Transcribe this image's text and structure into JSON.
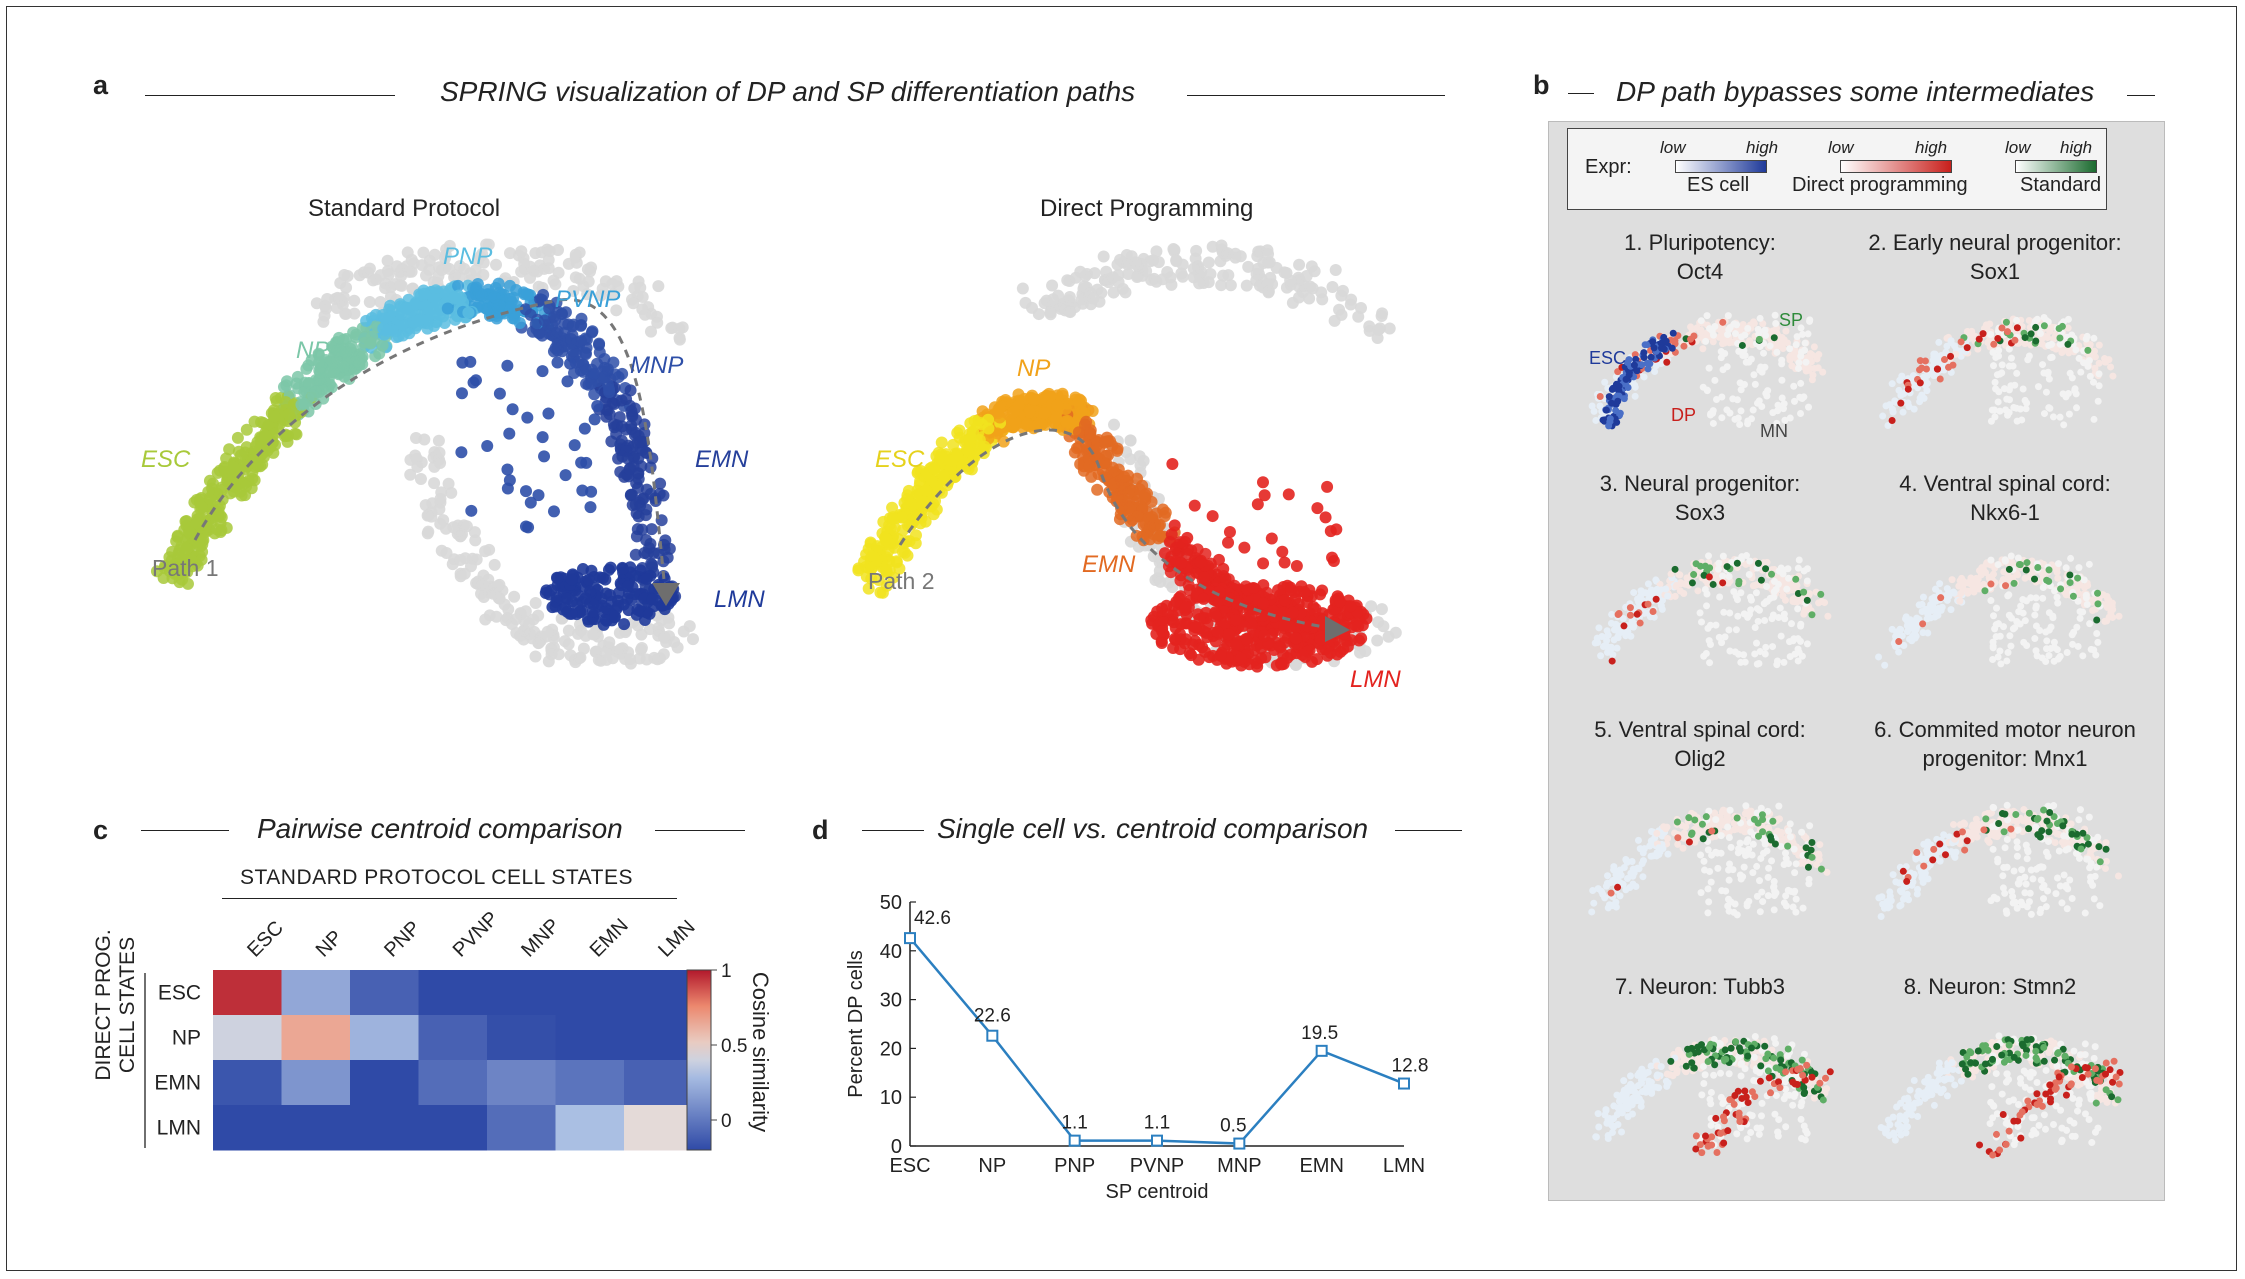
{
  "panel_a": {
    "letter": "a",
    "title": "SPRING visualization of DP and SP differentiation paths",
    "left": {
      "subtitle": "Standard Protocol",
      "labels": {
        "pnp": "PNP",
        "pvnp": "PVNP",
        "np": "NP",
        "mnp": "MNP",
        "esc": "ESC",
        "emn": "EMN",
        "lmn": "LMN",
        "path": "Path 1"
      },
      "colors": {
        "esc": "#a8c93a",
        "np": "#7cc7a8",
        "pnp": "#5bbde0",
        "pvnp": "#3aa0d8",
        "mnp": "#2e4fa8",
        "emn": "#26409b",
        "lmn": "#1f3a9a",
        "background": "#d8d8d8"
      }
    },
    "right": {
      "subtitle": "Direct Programming",
      "labels": {
        "np": "NP",
        "esc": "ESC",
        "emn": "EMN",
        "lmn": "LMN",
        "path": "Path 2"
      },
      "colors": {
        "esc": "#f1e31f",
        "np": "#f1a21a",
        "emn": "#e26a22",
        "lmn": "#e3231f",
        "background": "#d8d8d8"
      }
    }
  },
  "panel_b": {
    "letter": "b",
    "title": "DP path bypasses some intermediates",
    "legend": {
      "prefix": "Expr:",
      "scales": [
        {
          "low": "low",
          "high": "high",
          "name": "ES cell",
          "color": "#1f3a9a"
        },
        {
          "low": "low",
          "high": "high",
          "name": "Direct programming",
          "color": "#c8201c"
        },
        {
          "low": "low",
          "high": "high",
          "name": "Standard",
          "color": "#1b6b2f"
        }
      ]
    },
    "maps": [
      {
        "title_1": "1. Pluripotency:",
        "title_2": "Oct4",
        "tags": {
          "sp": "SP",
          "esc": "ESC",
          "dp": "DP",
          "mn": "MN"
        }
      },
      {
        "title_1": "2. Early neural progenitor:",
        "title_2": "Sox1"
      },
      {
        "title_1": "3. Neural progenitor:",
        "title_2": "Sox3"
      },
      {
        "title_1": "4. Ventral spinal cord:",
        "title_2": "Nkx6-1"
      },
      {
        "title_1": "5. Ventral spinal cord:",
        "title_2": "Olig2"
      },
      {
        "title_1": "6. Commited motor neuron",
        "title_2": "progenitor: Mnx1"
      },
      {
        "title_1": "7. Neuron: Tubb3",
        "title_2": ""
      },
      {
        "title_1": "8. Neuron: Stmn2",
        "title_2": ""
      }
    ]
  },
  "panel_c": {
    "letter": "c",
    "title": "Pairwise centroid comparison",
    "col_header": "STANDARD PROTOCOL CELL STATES",
    "row_header_1": "DIRECT PROG.",
    "row_header_2": "CELL STATES",
    "colorbar_label": "Cosine similarity",
    "colorbar_ticks": [
      "1",
      "0.5",
      "0"
    ]
  },
  "panel_d": {
    "letter": "d",
    "title": "Single cell vs. centroid comparison"
  },
  "chart_data": [
    {
      "type": "heatmap",
      "columns": [
        "ESC",
        "NP",
        "PNP",
        "PVNP",
        "MNP",
        "EMN",
        "LMN"
      ],
      "rows": [
        "ESC",
        "NP",
        "EMN",
        "LMN"
      ],
      "values": [
        [
          0.95,
          0.2,
          -0.1,
          -0.25,
          -0.25,
          -0.25,
          -0.25
        ],
        [
          0.4,
          0.65,
          0.25,
          -0.1,
          -0.18,
          -0.25,
          -0.25
        ],
        [
          -0.15,
          0.12,
          -0.2,
          -0.05,
          0.05,
          -0.02,
          -0.1
        ],
        [
          -0.25,
          -0.25,
          -0.25,
          -0.2,
          -0.05,
          0.3,
          0.45
        ]
      ],
      "colorbar": {
        "min": -0.2,
        "max": 1,
        "label": "Cosine similarity"
      }
    },
    {
      "type": "line",
      "x": [
        "ESC",
        "NP",
        "PNP",
        "PVNP",
        "MNP",
        "EMN",
        "LMN"
      ],
      "values": [
        42.6,
        22.6,
        1.1,
        1.1,
        0.5,
        19.5,
        12.8
      ],
      "data_labels": [
        "42.6",
        "22.6",
        "1.1",
        "1.1",
        "0.5",
        "19.5",
        "12.8"
      ],
      "xlabel": "SP centroid",
      "ylabel": "Percent DP cells",
      "ylim": [
        0,
        50
      ],
      "yticks": [
        "0",
        "10",
        "20",
        "30",
        "40",
        "50"
      ],
      "color": "#2b7fc0"
    }
  ]
}
